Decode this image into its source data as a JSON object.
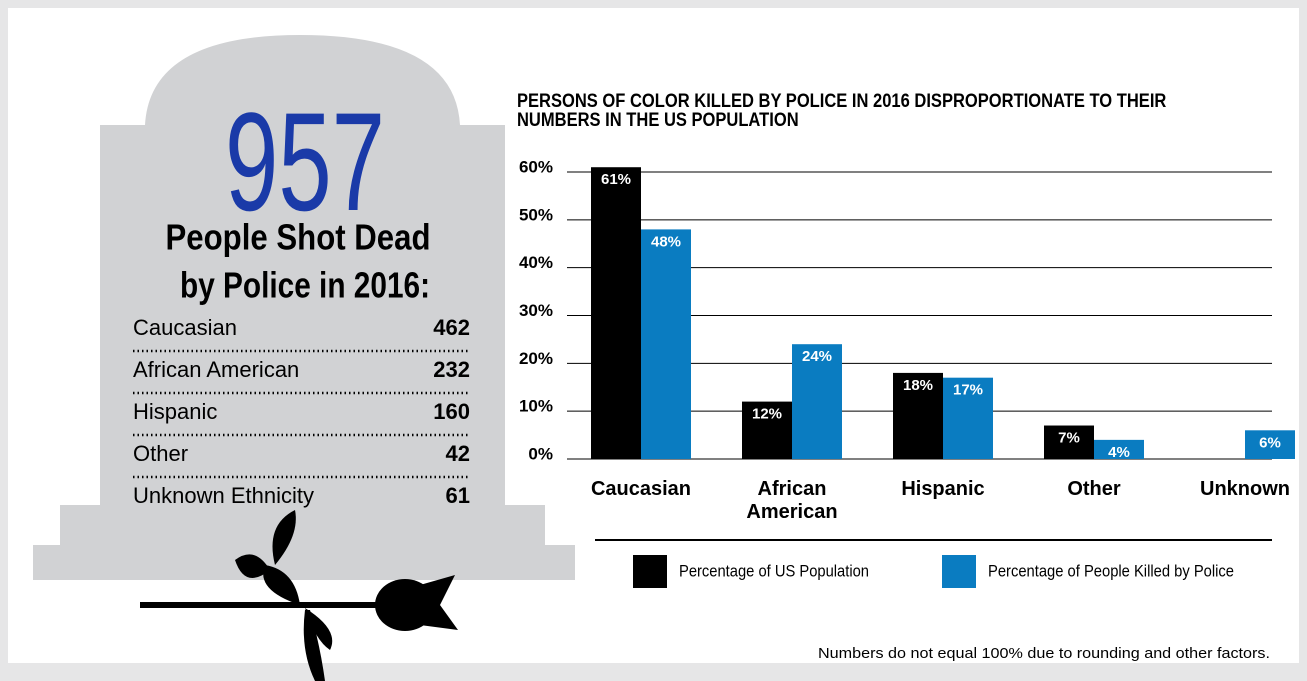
{
  "headline": {
    "number": 957,
    "line1": "People Shot Dead",
    "line2": "by Police in 2016:"
  },
  "table": {
    "rows": [
      [
        "Caucasian",
        462
      ],
      [
        "African American",
        232
      ],
      [
        "Hispanic",
        160
      ],
      [
        "Other",
        42
      ],
      [
        "Unknown Ethnicity",
        61
      ]
    ]
  },
  "chart_data": {
    "type": "bar",
    "title": "PERSONS OF COLOR KILLED BY POLICE IN 2016 DISPROPORTIONATE TO THEIR NUMBERS IN THE US POPULATION",
    "categories": [
      "Caucasian",
      "African American",
      "Hispanic",
      "Other",
      "Unknown"
    ],
    "series": [
      {
        "name": "Percentage of US Population",
        "color": "#000000",
        "values": [
          61,
          12,
          18,
          7,
          null
        ],
        "value_labels": [
          "61%",
          "12%",
          "18%",
          "7%",
          null
        ]
      },
      {
        "name": "Percentage of People Killed by Police",
        "color": "#0a7cc1",
        "values": [
          48,
          24,
          17,
          4,
          6
        ],
        "value_labels": [
          "48%",
          "24%",
          "17%",
          "4%",
          "6%"
        ]
      }
    ],
    "ylim": [
      0,
      60
    ],
    "yticks": [
      {
        "value": 0,
        "label": "0%"
      },
      {
        "value": 10,
        "label": "10%"
      },
      {
        "value": 20,
        "label": "20%"
      },
      {
        "value": 30,
        "label": "30%"
      },
      {
        "value": 40,
        "label": "40%"
      },
      {
        "value": 50,
        "label": "50%"
      },
      {
        "value": 60,
        "label": "60%"
      }
    ],
    "grid": true,
    "footnote": "Numbers do not equal 100% due to rounding and other factors."
  }
}
